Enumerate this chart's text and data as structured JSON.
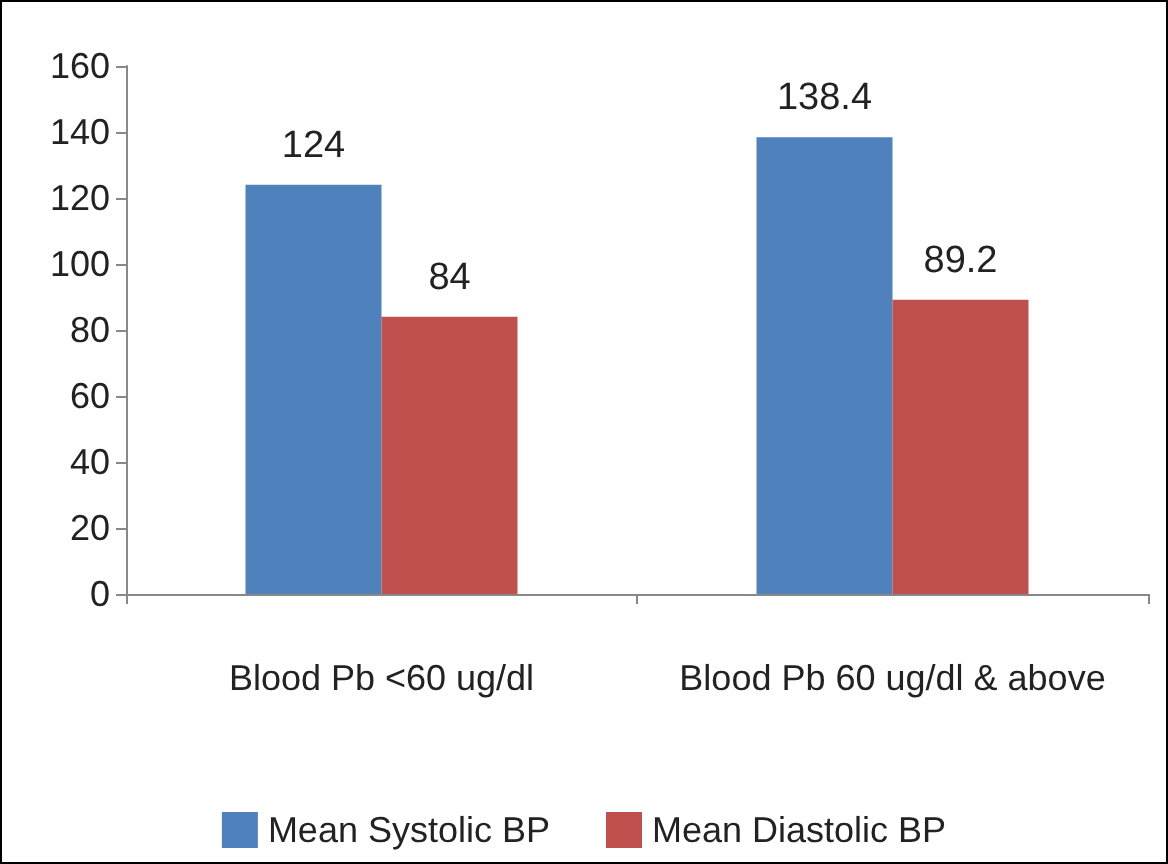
{
  "chart_data": {
    "type": "bar",
    "categories": [
      "Blood Pb <60 ug/dl",
      "Blood Pb 60 ug/dl & above"
    ],
    "series": [
      {
        "name": "Mean Systolic BP",
        "color": "#4f81bd",
        "values": [
          124,
          138.4
        ]
      },
      {
        "name": "Mean Diastolic BP",
        "color": "#c0504d",
        "values": [
          84,
          89.2
        ]
      }
    ],
    "ylim": [
      0,
      160
    ],
    "yticks": [
      0,
      20,
      40,
      60,
      80,
      100,
      120,
      140,
      160
    ],
    "grid": false,
    "legend": "bottom",
    "data_labels": true
  }
}
